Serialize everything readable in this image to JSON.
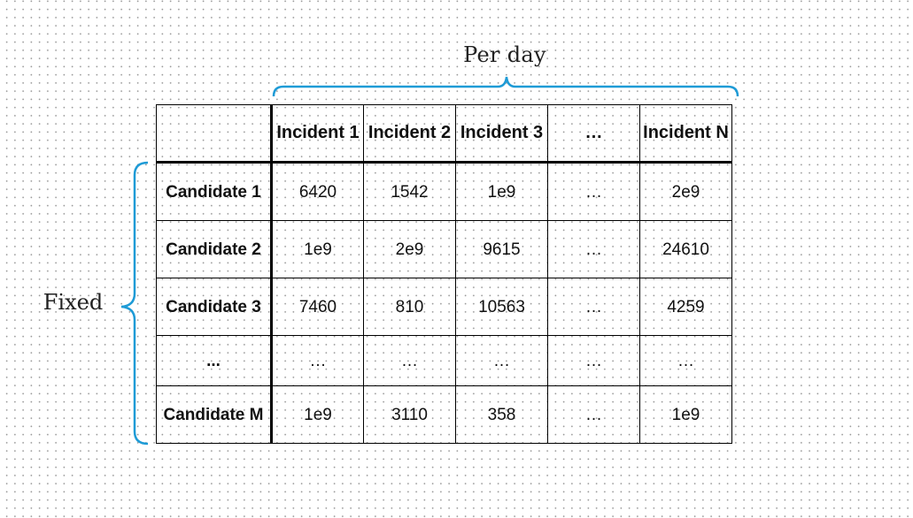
{
  "labels": {
    "per_day": "Per day",
    "fixed": "Fixed"
  },
  "colors": {
    "brace": "#1e9bd6"
  },
  "table": {
    "corner": "",
    "columns": [
      "Incident 1",
      "Incident 2",
      "Incident 3",
      "…",
      "Incident N"
    ],
    "rows": [
      {
        "label": "Candidate 1",
        "cells": [
          "6420",
          "1542",
          "1e9",
          "…",
          "2e9"
        ]
      },
      {
        "label": "Candidate 2",
        "cells": [
          "1e9",
          "2e9",
          "9615",
          "…",
          "24610"
        ]
      },
      {
        "label": "Candidate 3",
        "cells": [
          "7460",
          "810",
          "10563",
          "…",
          "4259"
        ]
      },
      {
        "label": "...",
        "cells": [
          "…",
          "…",
          "…",
          "…",
          "…"
        ]
      },
      {
        "label": "Candidate M",
        "cells": [
          "1e9",
          "3110",
          "358",
          "…",
          "1e9"
        ]
      }
    ]
  }
}
